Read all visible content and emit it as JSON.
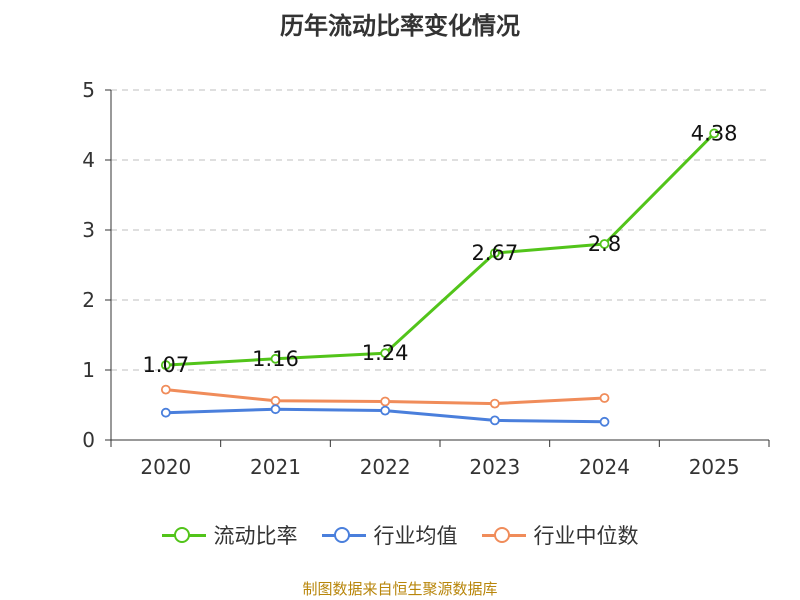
{
  "title": "历年流动比率变化情况",
  "source": "制图数据来自恒生聚源数据库",
  "colors": {
    "current_ratio": "#52c41a",
    "industry_avg": "#4a7fdc",
    "industry_median": "#f08c5a",
    "grid": "#cccccc",
    "axis": "#333333"
  },
  "chart_data": {
    "type": "line",
    "title": "历年流动比率变化情况",
    "xlabel": "",
    "ylabel": "",
    "categories": [
      "2020",
      "2021",
      "2022",
      "2023",
      "2024",
      "2025"
    ],
    "ylim": [
      0,
      5
    ],
    "yticks": [
      0,
      1,
      2,
      3,
      4,
      5
    ],
    "grid": true,
    "legend": "bottom-center",
    "series": [
      {
        "name": "流动比率",
        "key": "current_ratio",
        "values": [
          1.07,
          1.16,
          1.24,
          2.67,
          2.8,
          4.38
        ],
        "labels": [
          "1.07",
          "1.16",
          "1.24",
          "2.67",
          "2.8",
          "4.38"
        ]
      },
      {
        "name": "行业均值",
        "key": "industry_avg",
        "values": [
          0.39,
          0.44,
          0.42,
          0.28,
          0.26,
          null
        ]
      },
      {
        "name": "行业中位数",
        "key": "industry_median",
        "values": [
          0.72,
          0.56,
          0.55,
          0.52,
          0.6,
          null
        ]
      }
    ]
  }
}
